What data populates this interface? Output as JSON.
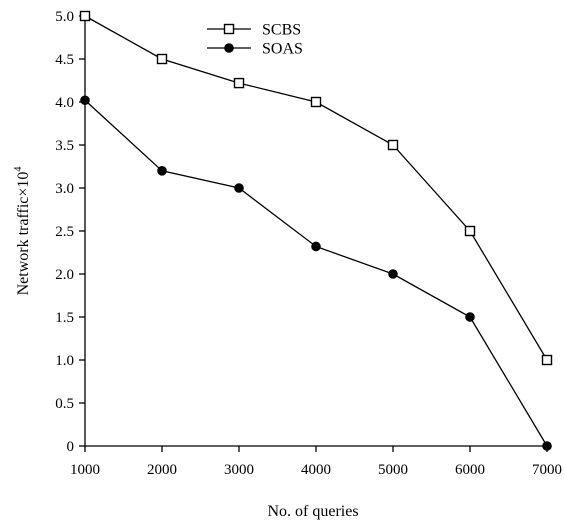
{
  "chart_data": {
    "type": "line",
    "xlabel": "No. of queries",
    "ylabel_main": "Network traffic×10",
    "ylabel_exp": "4",
    "x": [
      1000,
      2000,
      3000,
      4000,
      5000,
      6000,
      7000
    ],
    "x_tick_labels": [
      "1000",
      "2000",
      "3000",
      "4000",
      "5000",
      "6000",
      "7000"
    ],
    "y_ticks": [
      0,
      0.5,
      1.0,
      1.5,
      2.0,
      2.5,
      3.0,
      3.5,
      4.0,
      4.5,
      5.0
    ],
    "y_tick_labels": [
      "0",
      "0.5",
      "1.0",
      "1.5",
      "2.0",
      "2.5",
      "3.0",
      "3.5",
      "4.0",
      "4.5",
      "5.0"
    ],
    "xlim": [
      1000,
      7000
    ],
    "ylim": [
      0,
      5.0
    ],
    "grid": false,
    "legend_position": "top-center",
    "series": [
      {
        "name": "SCBS",
        "marker": "open-square",
        "color": "#000000",
        "values": [
          5.0,
          4.5,
          4.22,
          4.0,
          3.5,
          2.5,
          1.0
        ]
      },
      {
        "name": "SOAS",
        "marker": "filled-circle",
        "color": "#000000",
        "values": [
          4.02,
          3.2,
          3.0,
          2.32,
          2.0,
          1.5,
          0.0
        ]
      }
    ]
  }
}
